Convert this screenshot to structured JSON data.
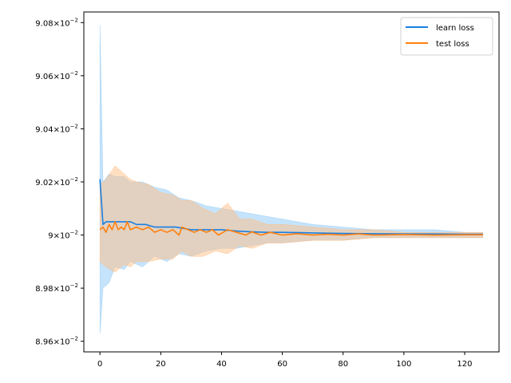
{
  "chart_data": {
    "type": "line",
    "title": "",
    "xlabel": "",
    "ylabel": "",
    "xlim": [
      -5.3,
      131.3
    ],
    "ylim": [
      0.08956,
      0.09084
    ],
    "x_ticks": [
      0,
      20,
      40,
      60,
      80,
      100,
      120
    ],
    "y_ticks": [
      {
        "value": 0.0896,
        "mantissa": "8.96",
        "exp": "−2"
      },
      {
        "value": 0.0898,
        "mantissa": "8.98",
        "exp": "−2"
      },
      {
        "value": 0.09,
        "mantissa": "9",
        "exp": "−2"
      },
      {
        "value": 0.0902,
        "mantissa": "9.02",
        "exp": "−2"
      },
      {
        "value": 0.0904,
        "mantissa": "9.04",
        "exp": "−2"
      },
      {
        "value": 0.0906,
        "mantissa": "9.06",
        "exp": "−2"
      },
      {
        "value": 0.0908,
        "mantissa": "9.08",
        "exp": "−2"
      }
    ],
    "grid": false,
    "legend_position": "top-right",
    "series": [
      {
        "name": "learn loss",
        "color": "#1a7fe0",
        "band_color": "#9fd0f7",
        "points": [
          [
            0,
            0.09021
          ],
          [
            1,
            0.09004
          ],
          [
            2,
            0.09005
          ],
          [
            4,
            0.09005
          ],
          [
            6,
            0.09005
          ],
          [
            8,
            0.09005
          ],
          [
            10,
            0.09005
          ],
          [
            12,
            0.09004
          ],
          [
            15,
            0.09004
          ],
          [
            18,
            0.09003
          ],
          [
            20,
            0.09003
          ],
          [
            25,
            0.09003
          ],
          [
            30,
            0.09002
          ],
          [
            35,
            0.09002
          ],
          [
            40,
            0.09002
          ],
          [
            45,
            0.090015
          ],
          [
            50,
            0.090012
          ],
          [
            55,
            0.09001
          ],
          [
            60,
            0.09001
          ],
          [
            70,
            0.090008
          ],
          [
            80,
            0.090006
          ],
          [
            90,
            0.090005
          ],
          [
            100,
            0.090004
          ],
          [
            110,
            0.090004
          ],
          [
            120,
            0.090003
          ],
          [
            126,
            0.090003
          ]
        ],
        "band": [
          [
            0,
            0.08963,
            0.09079
          ],
          [
            1,
            0.0898,
            0.0902
          ],
          [
            3,
            0.08982,
            0.09023
          ],
          [
            5,
            0.08988,
            0.09022
          ],
          [
            8,
            0.08987,
            0.09022
          ],
          [
            10,
            0.0899,
            0.0902
          ],
          [
            14,
            0.08988,
            0.0902
          ],
          [
            18,
            0.08992,
            0.09018
          ],
          [
            22,
            0.0899,
            0.09017
          ],
          [
            26,
            0.08993,
            0.09014
          ],
          [
            30,
            0.08992,
            0.09013
          ],
          [
            35,
            0.08994,
            0.09011
          ],
          [
            40,
            0.08995,
            0.0901
          ],
          [
            45,
            0.08995,
            0.09009
          ],
          [
            50,
            0.08996,
            0.09008
          ],
          [
            55,
            0.08997,
            0.09007
          ],
          [
            60,
            0.08997,
            0.09006
          ],
          [
            70,
            0.08998,
            0.09004
          ],
          [
            80,
            0.08998,
            0.09003
          ],
          [
            90,
            0.08999,
            0.09002
          ],
          [
            100,
            0.08999,
            0.09002
          ],
          [
            110,
            0.08999,
            0.09002
          ],
          [
            120,
            0.08999,
            0.09001
          ],
          [
            126,
            0.08999,
            0.09001
          ]
        ]
      },
      {
        "name": "test loss",
        "color": "#ff7f0e",
        "band_color": "#ffbf86",
        "points": [
          [
            0,
            0.09002
          ],
          [
            1,
            0.09003
          ],
          [
            2,
            0.09001
          ],
          [
            3,
            0.09004
          ],
          [
            4,
            0.09002
          ],
          [
            5,
            0.09005
          ],
          [
            6,
            0.09002
          ],
          [
            7,
            0.09003
          ],
          [
            8,
            0.09002
          ],
          [
            9,
            0.09005
          ],
          [
            10,
            0.09002
          ],
          [
            12,
            0.09003
          ],
          [
            14,
            0.09002
          ],
          [
            16,
            0.09003
          ],
          [
            18,
            0.09001
          ],
          [
            20,
            0.09002
          ],
          [
            22,
            0.09001
          ],
          [
            24,
            0.09002
          ],
          [
            26,
            0.09
          ],
          [
            27,
            0.09003
          ],
          [
            29,
            0.09002
          ],
          [
            31,
            0.09001
          ],
          [
            33,
            0.09002
          ],
          [
            35,
            0.09001
          ],
          [
            37,
            0.09002
          ],
          [
            39,
            0.09
          ],
          [
            42,
            0.09002
          ],
          [
            45,
            0.09001
          ],
          [
            48,
            0.09
          ],
          [
            50,
            0.090012
          ],
          [
            53,
            0.09
          ],
          [
            56,
            0.09001
          ],
          [
            60,
            0.09
          ],
          [
            65,
            0.090005
          ],
          [
            70,
            0.09
          ],
          [
            75,
            0.090003
          ],
          [
            80,
            0.09
          ],
          [
            85,
            0.090004
          ],
          [
            90,
            0.09
          ],
          [
            100,
            0.090002
          ],
          [
            110,
            0.09
          ],
          [
            120,
            0.090001
          ],
          [
            126,
            0.090001
          ]
        ],
        "band": [
          [
            0,
            0.0899,
            0.09019
          ],
          [
            2,
            0.08988,
            0.09021
          ],
          [
            5,
            0.08986,
            0.09026
          ],
          [
            8,
            0.08989,
            0.09023
          ],
          [
            10,
            0.08988,
            0.09021
          ],
          [
            12,
            0.0899,
            0.0902
          ],
          [
            16,
            0.0899,
            0.09019
          ],
          [
            20,
            0.08991,
            0.09016
          ],
          [
            24,
            0.08991,
            0.09015
          ],
          [
            27,
            0.08994,
            0.09013
          ],
          [
            30,
            0.08992,
            0.09013
          ],
          [
            34,
            0.08992,
            0.0901
          ],
          [
            38,
            0.08994,
            0.09008
          ],
          [
            42,
            0.08993,
            0.09012
          ],
          [
            46,
            0.08996,
            0.09006
          ],
          [
            50,
            0.08995,
            0.09006
          ],
          [
            55,
            0.08997,
            0.09004
          ],
          [
            60,
            0.08997,
            0.09004
          ],
          [
            70,
            0.08998,
            0.09003
          ],
          [
            80,
            0.08998,
            0.09002
          ],
          [
            90,
            0.08999,
            0.09002
          ],
          [
            100,
            0.08999,
            0.09001
          ],
          [
            110,
            0.08999,
            0.09001
          ],
          [
            120,
            0.08999,
            0.09001
          ],
          [
            126,
            0.08999,
            0.09001
          ]
        ]
      }
    ]
  }
}
